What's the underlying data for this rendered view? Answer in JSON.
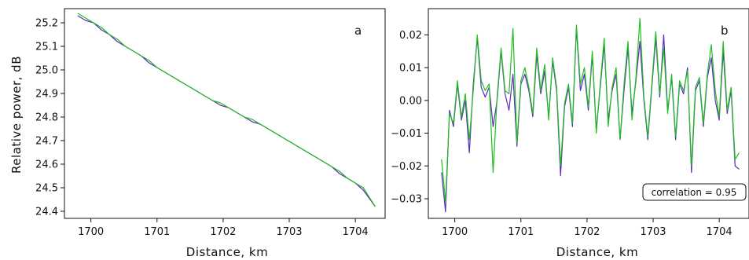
{
  "chart_data": [
    {
      "type": "line",
      "panel_label": "a",
      "xlabel": "Distance, km",
      "ylabel": "Relative power, dB",
      "xlim": [
        1699.6,
        1704.45
      ],
      "ylim": [
        24.37,
        25.26
      ],
      "xticks": [
        1700,
        1701,
        1702,
        1703,
        1704
      ],
      "yticks": [
        24.4,
        24.5,
        24.6,
        24.7,
        24.8,
        24.9,
        25.0,
        25.1,
        25.2
      ],
      "xtick_labels": [
        "1700",
        "1701",
        "1702",
        "1703",
        "1704"
      ],
      "ytick_labels": [
        "24.4",
        "24.5",
        "24.6",
        "24.7",
        "24.8",
        "24.9",
        "25.0",
        "25.1",
        "25.2"
      ],
      "grid": false,
      "x": [
        1699.8,
        1699.92,
        1700.04,
        1700.16,
        1700.28,
        1700.4,
        1700.52,
        1700.64,
        1700.76,
        1700.88,
        1701.0,
        1701.12,
        1701.24,
        1701.36,
        1701.48,
        1701.6,
        1701.72,
        1701.84,
        1701.96,
        1702.08,
        1702.2,
        1702.32,
        1702.44,
        1702.56,
        1702.68,
        1702.8,
        1702.92,
        1703.04,
        1703.16,
        1703.28,
        1703.4,
        1703.52,
        1703.64,
        1703.76,
        1703.88,
        1704.0,
        1704.12,
        1704.3
      ],
      "series": [
        {
          "color": "#5b2bc0",
          "values": [
            25.23,
            25.21,
            25.2,
            25.17,
            25.15,
            25.12,
            25.1,
            25.08,
            25.06,
            25.03,
            25.01,
            24.99,
            24.97,
            24.95,
            24.93,
            24.91,
            24.89,
            24.87,
            24.85,
            24.84,
            24.82,
            24.8,
            24.78,
            24.77,
            24.75,
            24.73,
            24.71,
            24.69,
            24.67,
            24.65,
            24.63,
            24.61,
            24.59,
            24.56,
            24.54,
            24.52,
            24.49,
            24.42
          ]
        },
        {
          "color": "#1fbf1f",
          "values": [
            25.24,
            25.22,
            25.2,
            25.18,
            25.15,
            25.13,
            25.1,
            25.08,
            25.06,
            25.04,
            25.01,
            24.99,
            24.97,
            24.95,
            24.93,
            24.91,
            24.89,
            24.87,
            24.86,
            24.84,
            24.82,
            24.8,
            24.79,
            24.77,
            24.75,
            24.73,
            24.71,
            24.69,
            24.67,
            24.65,
            24.63,
            24.61,
            24.59,
            24.57,
            24.54,
            24.52,
            24.5,
            24.42
          ]
        }
      ]
    },
    {
      "type": "line",
      "panel_label": "b",
      "xlabel": "Distance, km",
      "ylabel": "",
      "xlim": [
        1699.6,
        1704.45
      ],
      "ylim": [
        -0.036,
        0.028
      ],
      "xticks": [
        1700,
        1701,
        1702,
        1703,
        1704
      ],
      "yticks": [
        -0.03,
        -0.02,
        -0.01,
        0.0,
        0.01,
        0.02
      ],
      "xtick_labels": [
        "1700",
        "1701",
        "1702",
        "1703",
        "1704"
      ],
      "ytick_labels": [
        "−0.03",
        "−0.02",
        "−0.01",
        "0.00",
        "0.01",
        "0.02"
      ],
      "grid": false,
      "annotation": "correlation = 0.95",
      "annotation_position": "bottom-right",
      "x": [
        1699.8,
        1699.86,
        1699.92,
        1699.98,
        1700.04,
        1700.1,
        1700.16,
        1700.22,
        1700.28,
        1700.34,
        1700.4,
        1700.46,
        1700.52,
        1700.58,
        1700.64,
        1700.7,
        1700.76,
        1700.82,
        1700.88,
        1700.94,
        1701.0,
        1701.06,
        1701.12,
        1701.18,
        1701.24,
        1701.3,
        1701.36,
        1701.42,
        1701.48,
        1701.54,
        1701.6,
        1701.66,
        1701.72,
        1701.78,
        1701.84,
        1701.9,
        1701.96,
        1702.02,
        1702.08,
        1702.14,
        1702.2,
        1702.26,
        1702.32,
        1702.38,
        1702.44,
        1702.5,
        1702.56,
        1702.62,
        1702.68,
        1702.74,
        1702.8,
        1702.86,
        1702.92,
        1702.98,
        1703.04,
        1703.1,
        1703.16,
        1703.22,
        1703.28,
        1703.34,
        1703.4,
        1703.46,
        1703.52,
        1703.58,
        1703.64,
        1703.7,
        1703.76,
        1703.82,
        1703.88,
        1703.94,
        1704.0,
        1704.06,
        1704.12,
        1704.18,
        1704.24,
        1704.3
      ],
      "series": [
        {
          "color": "#5b2bc0",
          "values": [
            -0.022,
            -0.034,
            -0.003,
            -0.008,
            0.005,
            -0.006,
            0.0,
            -0.016,
            0.005,
            0.019,
            0.004,
            0.001,
            0.004,
            -0.008,
            0.0,
            0.015,
            0.002,
            -0.003,
            0.008,
            -0.014,
            0.005,
            0.008,
            0.003,
            -0.005,
            0.014,
            0.002,
            0.009,
            -0.005,
            0.012,
            0.003,
            -0.023,
            -0.002,
            0.004,
            -0.008,
            0.022,
            0.003,
            0.008,
            -0.003,
            0.014,
            -0.009,
            0.004,
            0.017,
            -0.006,
            0.003,
            0.008,
            -0.012,
            0.003,
            0.016,
            -0.004,
            0.006,
            0.018,
            0.0,
            -0.012,
            0.004,
            0.019,
            0.001,
            0.02,
            -0.003,
            0.007,
            -0.012,
            0.005,
            0.002,
            0.01,
            -0.022,
            0.003,
            0.006,
            -0.008,
            0.007,
            0.013,
            0.0,
            -0.006,
            0.015,
            -0.004,
            0.003,
            -0.02,
            -0.021
          ]
        },
        {
          "color": "#1fbf1f",
          "values": [
            -0.018,
            -0.031,
            -0.004,
            -0.007,
            0.006,
            -0.005,
            0.002,
            -0.012,
            0.003,
            0.02,
            0.006,
            0.003,
            0.005,
            -0.022,
            0.001,
            0.016,
            0.003,
            0.002,
            0.022,
            -0.013,
            0.006,
            0.01,
            0.004,
            -0.004,
            0.016,
            0.003,
            0.011,
            -0.006,
            0.013,
            0.004,
            -0.02,
            -0.001,
            0.005,
            -0.007,
            0.023,
            0.005,
            0.01,
            -0.002,
            0.015,
            -0.01,
            0.005,
            0.019,
            -0.008,
            0.004,
            0.01,
            -0.012,
            0.005,
            0.018,
            -0.006,
            0.007,
            0.025,
            0.001,
            -0.011,
            0.005,
            0.021,
            0.002,
            0.016,
            -0.004,
            0.008,
            -0.011,
            0.006,
            0.003,
            0.009,
            -0.02,
            0.004,
            0.007,
            -0.007,
            0.008,
            0.017,
            0.003,
            -0.005,
            0.018,
            -0.003,
            0.004,
            -0.018,
            -0.016
          ]
        }
      ]
    }
  ]
}
